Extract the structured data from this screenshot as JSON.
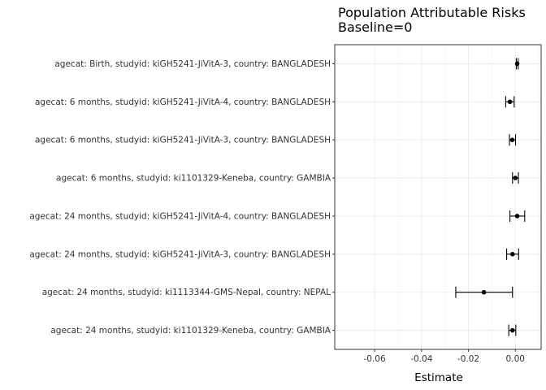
{
  "chart_data": {
    "type": "forest",
    "title": "Population Attributable Risks",
    "subtitle": "Baseline=0",
    "xlabel": "Estimate",
    "ylabel": "",
    "xlim": [
      -0.077,
      0.011
    ],
    "x_ticks": [
      -0.06,
      -0.04,
      -0.02,
      0.0
    ],
    "x_tick_labels": [
      "-0.06",
      "-0.04",
      "-0.02",
      "0.00"
    ],
    "grid": true,
    "rows": [
      {
        "label": "agecat: Birth, studyid: kiGH5241-JiVitA-3, country: BANGLADESH",
        "estimate": 0.0008,
        "lower": 0.0004,
        "upper": 0.0012
      },
      {
        "label": "agecat: 6 months, studyid: kiGH5241-JiVitA-4, country: BANGLADESH",
        "estimate": -0.0023,
        "lower": -0.0041,
        "upper": -0.0005
      },
      {
        "label": "agecat: 6 months, studyid: kiGH5241-JiVitA-3, country: BANGLADESH",
        "estimate": -0.0013,
        "lower": -0.0025,
        "upper": 0.0001
      },
      {
        "label": "agecat: 6 months, studyid: ki1101329-Keneba, country: GAMBIA",
        "estimate": 0.0,
        "lower": -0.0012,
        "upper": 0.0013
      },
      {
        "label": "agecat: 24 months, studyid: kiGH5241-JiVitA-4, country: BANGLADESH",
        "estimate": 0.0008,
        "lower": -0.0023,
        "upper": 0.004
      },
      {
        "label": "agecat: 24 months, studyid: kiGH5241-JiVitA-3, country: BANGLADESH",
        "estimate": -0.0012,
        "lower": -0.0037,
        "upper": 0.0014
      },
      {
        "label": "agecat: 24 months, studyid: ki1113344-GMS-Nepal, country: NEPAL",
        "estimate": -0.0134,
        "lower": -0.0254,
        "upper": -0.0012
      },
      {
        "label": "agecat: 24 months, studyid: ki1101329-Keneba, country: GAMBIA",
        "estimate": -0.0012,
        "lower": -0.0028,
        "upper": 0.0002
      }
    ],
    "colors": {
      "point": "#000000",
      "errorbar": "#000000",
      "grid_major": "#ebebeb",
      "grid_minor": "#f4f4f4",
      "panel_border": "#333333"
    }
  }
}
